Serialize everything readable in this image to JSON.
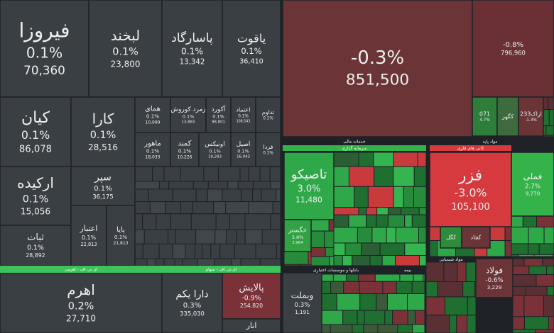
{
  "tiles": [
    {
      "label": "فیروزا",
      "change": "0.1%",
      "value": "70,360"
    },
    {
      "label": "لبخند",
      "change": "0.1%",
      "value": "23,800"
    },
    {
      "label": "پاسارگاد",
      "change": "0.1%",
      "value": "13,342"
    },
    {
      "label": "یاقوت",
      "change": "0.1%",
      "value": "36,410"
    },
    {
      "label": "کیان",
      "change": "0.1%",
      "value": "86,078"
    },
    {
      "label": "کارا",
      "change": "0.1%",
      "value": "28,516"
    },
    {
      "label": "ارکیده",
      "change": "0.1%",
      "value": "15,056"
    },
    {
      "label": "سپر",
      "change": "0.1%",
      "value": "36,175"
    },
    {
      "label": "ثبات",
      "change": "0.1%",
      "value": "28,892"
    },
    {
      "label": "اعتبار",
      "change": "0.1%",
      "value": "22,813"
    },
    {
      "label": "پایا",
      "change": "0.1%",
      "value": "21,813"
    },
    {
      "label": "همای",
      "change": "0.1%",
      "value": "10,999"
    },
    {
      "label": "زمرد کوروش",
      "change": "0.1%",
      "value": "13,883"
    },
    {
      "label": "آکورد",
      "change": "0.1%",
      "value": "98,801"
    },
    {
      "label": "اعتماد",
      "change": "0.1%",
      "value": "108,543"
    },
    {
      "label": "تداوم",
      "change": "0.1%"
    },
    {
      "label": "ماهور",
      "change": "0.1%",
      "value": "18,033"
    },
    {
      "label": "کمند",
      "change": "0.1%",
      "value": "10,226"
    },
    {
      "label": "اونیکس",
      "change": "0.1%",
      "value": "19,283"
    },
    {
      "label": "اصیل",
      "change": "0.1%",
      "value": "16,043"
    },
    {
      "label": "فردا",
      "change": "0.1%"
    },
    {
      "change": "-0.3%",
      "value": "851,500"
    },
    {
      "change": "-0.8%",
      "value": "796,960"
    },
    {
      "label": "071",
      "change": "4.7%"
    },
    {
      "label": "کگهر"
    },
    {
      "label": "اراک233",
      "change": "-1.3%"
    },
    {
      "label": "اهرم",
      "change": "0.2%",
      "value": "27,710"
    },
    {
      "label": "دارا یکم",
      "change": "0.3%",
      "value": "335,030"
    },
    {
      "label": "پالایش",
      "change": "-0.9%",
      "value": "254,820"
    },
    {
      "label": "انار"
    },
    {
      "label": "تاصیکو",
      "change": "3.0%",
      "value": "11,480"
    },
    {
      "label": "خگستر",
      "change": "3.8%",
      "value": "3,964"
    },
    {
      "label": "فزر",
      "change": "-3.0%",
      "value": "105,100"
    },
    {
      "label": "فملی",
      "change": "2.7%",
      "value": "9,770"
    },
    {
      "label": "وبملت",
      "change": "0.3%",
      "value": "1,191"
    },
    {
      "label": "فولاد",
      "change": "-0.6%",
      "value": "3,229"
    },
    {
      "label": "کگل"
    },
    {
      "label": "کچاد"
    }
  ],
  "groups": [
    "ای تی اف - اهرمی",
    "ای تی اف - سهام",
    "خدمات مالی",
    "سرمایه گذاری",
    "مواد پایه",
    "کانی های فلزی",
    "بانکها و موسسات اعتباری",
    "بیمه",
    "مواد شیمیایی"
  ]
}
